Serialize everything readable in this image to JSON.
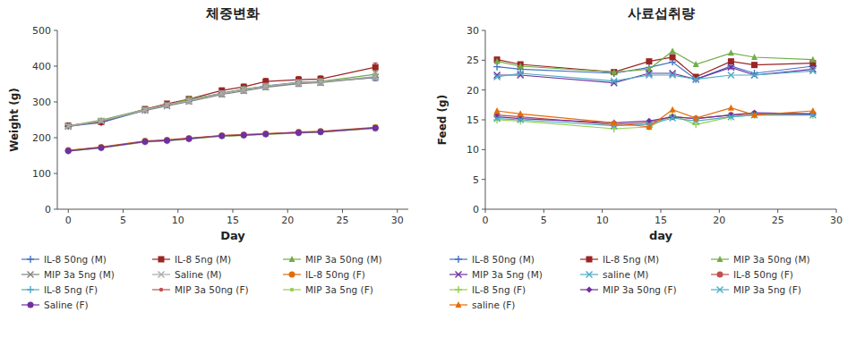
{
  "chart_data": [
    {
      "type": "line",
      "title": "체중변화",
      "x_label": "Day",
      "y_label": "Weight (g)",
      "x": [
        0,
        3,
        7,
        9,
        11,
        14,
        16,
        18,
        21,
        23,
        28
      ],
      "xlim": [
        -1,
        31
      ],
      "xticks": [
        0,
        5,
        10,
        15,
        20,
        25,
        30
      ],
      "ylim": [
        0,
        500
      ],
      "yticks": [
        0,
        100,
        200,
        300,
        400,
        500
      ],
      "grid": false,
      "legend": "bottom",
      "series": [
        {
          "name": "IL-8 50ng (M)",
          "color": "#4472C4",
          "marker": "plus",
          "values": [
            232,
            242,
            277,
            292,
            305,
            325,
            335,
            345,
            355,
            357,
            368
          ],
          "errors": [
            4,
            4,
            5,
            5,
            6,
            7,
            7,
            8,
            8,
            8,
            9
          ]
        },
        {
          "name": "IL-8 5ng (M)",
          "color": "#9B2424",
          "marker": "square",
          "values": [
            234,
            244,
            280,
            295,
            308,
            332,
            342,
            357,
            362,
            364,
            397
          ],
          "errors": [
            4,
            4,
            5,
            6,
            7,
            7,
            8,
            9,
            9,
            9,
            12
          ]
        },
        {
          "name": "MIP 3a 50ng (M)",
          "color": "#70AD47",
          "marker": "triangle",
          "values": [
            233,
            249,
            279,
            291,
            308,
            323,
            336,
            343,
            353,
            357,
            377
          ],
          "errors": [
            4,
            4,
            5,
            5,
            6,
            6,
            7,
            7,
            8,
            8,
            9
          ]
        },
        {
          "name": "MIP 3a 5ng (M)",
          "color": "#808080",
          "marker": "cross",
          "values": [
            231,
            246,
            276,
            289,
            301,
            321,
            331,
            341,
            351,
            354,
            369
          ],
          "errors": [
            4,
            4,
            5,
            5,
            6,
            7,
            7,
            7,
            8,
            8,
            9
          ]
        },
        {
          "name": "Saline (M)",
          "color": "#AAAAAA",
          "marker": "cross",
          "values": [
            233,
            247,
            278,
            292,
            303,
            324,
            334,
            344,
            354,
            356,
            371
          ],
          "errors": [
            4,
            4,
            5,
            5,
            6,
            7,
            7,
            8,
            8,
            8,
            9
          ]
        },
        {
          "name": "IL-8 50ng (F)",
          "color": "#E36C09",
          "marker": "circle",
          "values": [
            165,
            174,
            191,
            194,
            199,
            206,
            209,
            211,
            216,
            218,
            229
          ],
          "errors": [
            3,
            3,
            4,
            4,
            4,
            4,
            4,
            4,
            5,
            5,
            6
          ]
        },
        {
          "name": "IL-8 5ng (F)",
          "color": "#4BACC6",
          "marker": "plus",
          "values": [
            163,
            172,
            189,
            192,
            197,
            205,
            207,
            210,
            214,
            216,
            227
          ],
          "errors": [
            3,
            3,
            4,
            4,
            4,
            4,
            4,
            4,
            5,
            5,
            6
          ]
        },
        {
          "name": "MIP 3a 50ng (F)",
          "color": "#C0504D",
          "marker": "point",
          "values": [
            164,
            173,
            190,
            193,
            198,
            206,
            208,
            211,
            215,
            217,
            228
          ],
          "errors": [
            3,
            3,
            4,
            4,
            4,
            4,
            4,
            4,
            5,
            5,
            6
          ]
        },
        {
          "name": "MIP 3a 5ng (F)",
          "color": "#92D050",
          "marker": "point",
          "values": [
            162,
            171,
            188,
            191,
            196,
            204,
            206,
            209,
            213,
            215,
            226
          ],
          "errors": [
            3,
            3,
            4,
            4,
            4,
            4,
            4,
            4,
            5,
            5,
            6
          ]
        },
        {
          "name": "Saline (F)",
          "color": "#7030A0",
          "marker": "circle",
          "values": [
            163,
            172,
            189,
            192,
            197,
            205,
            207,
            210,
            214,
            216,
            227
          ],
          "errors": [
            3,
            3,
            4,
            4,
            4,
            4,
            4,
            4,
            5,
            5,
            6
          ]
        }
      ]
    },
    {
      "type": "line",
      "title": "사료섭취량",
      "x_label": "day",
      "y_label": "Feed (g)",
      "x": [
        1,
        3,
        11,
        14,
        16,
        18,
        21,
        23,
        28
      ],
      "xlim": [
        0,
        30
      ],
      "xticks": [
        0,
        5,
        10,
        15,
        20,
        25,
        30
      ],
      "ylim": [
        0,
        30
      ],
      "yticks": [
        0,
        5,
        10,
        15,
        20,
        25,
        30
      ],
      "grid": false,
      "legend": "bottom",
      "series": [
        {
          "name": "IL-8 50ng (M)",
          "color": "#4472C4",
          "marker": "plus",
          "values": [
            23.9,
            23.5,
            22.8,
            23.8,
            24.7,
            21.8,
            24.0,
            22.8,
            24.0
          ]
        },
        {
          "name": "IL-8 5ng (M)",
          "color": "#9B2424",
          "marker": "square",
          "values": [
            25.1,
            24.3,
            23.0,
            24.8,
            25.5,
            22.2,
            24.8,
            24.2,
            24.5
          ]
        },
        {
          "name": "MIP 3a 50ng (M)",
          "color": "#70AD47",
          "marker": "triangle",
          "values": [
            24.8,
            24.0,
            23.0,
            23.5,
            26.5,
            24.3,
            26.2,
            25.5,
            25.1
          ]
        },
        {
          "name": "MIP 3a 5ng (M)",
          "color": "#7030A0",
          "marker": "cross",
          "values": [
            22.5,
            22.5,
            21.2,
            22.8,
            22.8,
            21.8,
            23.8,
            22.5,
            23.5
          ]
        },
        {
          "name": "saline (M)",
          "color": "#4BACC6",
          "marker": "cross",
          "values": [
            22.2,
            22.8,
            21.5,
            22.5,
            22.5,
            21.8,
            22.5,
            22.5,
            23.2
          ]
        },
        {
          "name": "IL-8 50ng (F)",
          "color": "#C0504D",
          "marker": "circle",
          "values": [
            15.8,
            15.5,
            14.2,
            14.5,
            15.5,
            15.2,
            15.8,
            16.0,
            16.0
          ]
        },
        {
          "name": "IL-8 5ng (F)",
          "color": "#92D050",
          "marker": "plus",
          "values": [
            15.0,
            14.8,
            13.5,
            13.8,
            15.8,
            14.2,
            15.5,
            15.8,
            15.8
          ]
        },
        {
          "name": "MIP 3a 50ng (F)",
          "color": "#7030A0",
          "marker": "diamond",
          "values": [
            15.5,
            15.2,
            14.5,
            14.8,
            15.5,
            15.2,
            15.8,
            16.2,
            16.0
          ]
        },
        {
          "name": "MIP 3a 5ng (F)",
          "color": "#4BACC6",
          "marker": "cross",
          "values": [
            15.2,
            15.0,
            14.0,
            14.2,
            15.3,
            14.8,
            15.5,
            15.8,
            15.8
          ]
        },
        {
          "name": "saline (F)",
          "color": "#E36C09",
          "marker": "triangle",
          "values": [
            16.5,
            16.0,
            14.5,
            13.8,
            16.7,
            15.3,
            17.0,
            15.8,
            16.5
          ]
        }
      ]
    }
  ]
}
